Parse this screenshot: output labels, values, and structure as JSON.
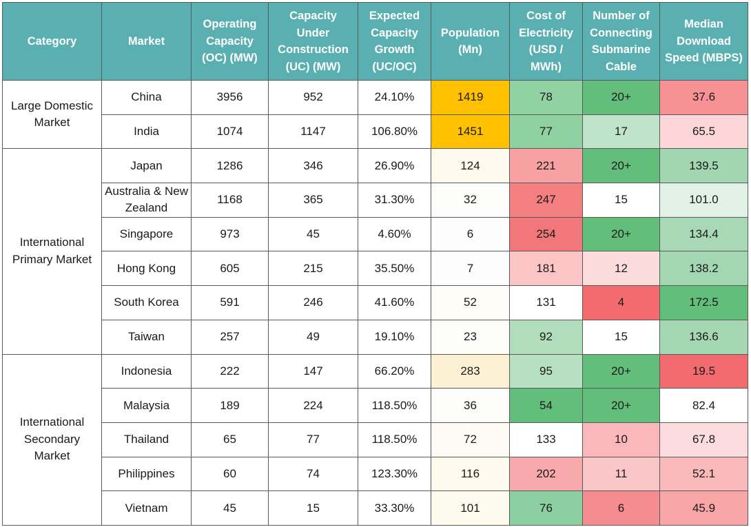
{
  "headers": [
    "Category",
    "Market",
    "Operating Capacity (OC) (MW)",
    "Capacity Under Construction (UC) (MW)",
    "Expected Capacity Growth (UC/OC)",
    "Population (Mn)",
    "Cost of Electricity (USD / MWh)",
    "Number of Connecting Submarine Cable",
    "Median Download Speed (MBPS)"
  ],
  "groups": [
    {
      "category": "Large Domestic Market",
      "rows": [
        {
          "market": "China",
          "oc": "3956",
          "uc": "952",
          "growth": "24.10%",
          "population": "1419",
          "cost": "78",
          "cables": "20+",
          "speed": "37.6"
        },
        {
          "market": "India",
          "oc": "1074",
          "uc": "1147",
          "growth": "106.80%",
          "population": "1451",
          "cost": "77",
          "cables": "17",
          "speed": "65.5"
        }
      ]
    },
    {
      "category": "International Primary Market",
      "rows": [
        {
          "market": "Japan",
          "oc": "1286",
          "uc": "346",
          "growth": "26.90%",
          "population": "124",
          "cost": "221",
          "cables": "20+",
          "speed": "139.5"
        },
        {
          "market": "Australia & New Zealand",
          "oc": "1168",
          "uc": "365",
          "growth": "31.30%",
          "population": "32",
          "cost": "247",
          "cables": "15",
          "speed": "101.0"
        },
        {
          "market": "Singapore",
          "oc": "973",
          "uc": "45",
          "growth": "4.60%",
          "population": "6",
          "cost": "254",
          "cables": "20+",
          "speed": "134.4"
        },
        {
          "market": "Hong Kong",
          "oc": "605",
          "uc": "215",
          "growth": "35.50%",
          "population": "7",
          "cost": "181",
          "cables": "12",
          "speed": "138.2"
        },
        {
          "market": "South Korea",
          "oc": "591",
          "uc": "246",
          "growth": "41.60%",
          "population": "52",
          "cost": "131",
          "cables": "4",
          "speed": "172.5"
        },
        {
          "market": "Taiwan",
          "oc": "257",
          "uc": "49",
          "growth": "19.10%",
          "population": "23",
          "cost": "92",
          "cables": "15",
          "speed": "136.6"
        }
      ]
    },
    {
      "category": "International Secondary Market",
      "rows": [
        {
          "market": "Indonesia",
          "oc": "222",
          "uc": "147",
          "growth": "66.20%",
          "population": "283",
          "cost": "95",
          "cables": "20+",
          "speed": "19.5"
        },
        {
          "market": "Malaysia",
          "oc": "189",
          "uc": "224",
          "growth": "118.50%",
          "population": "36",
          "cost": "54",
          "cables": "20+",
          "speed": "82.4"
        },
        {
          "market": "Thailand",
          "oc": "65",
          "uc": "77",
          "growth": "118.50%",
          "population": "72",
          "cost": "133",
          "cables": "10",
          "speed": "67.8"
        },
        {
          "market": "Philippines",
          "oc": "60",
          "uc": "74",
          "growth": "123.30%",
          "population": "116",
          "cost": "202",
          "cables": "11",
          "speed": "52.1"
        },
        {
          "market": "Vietnam",
          "oc": "45",
          "uc": "15",
          "growth": "33.30%",
          "population": "101",
          "cost": "76",
          "cables": "6",
          "speed": "45.9"
        }
      ]
    }
  ],
  "colors": {
    "header_bg": "#5aafb0",
    "header_text": "#ffffff",
    "border": "#595959",
    "population": {
      "China": "#ffc000",
      "India": "#ffc000",
      "Japan": "#fdf9ec",
      "Australia & New Zealand": "#fcfcfb",
      "Singapore": "#fdfdfd",
      "Hong Kong": "#fdfdfd",
      "South Korea": "#fdfcf7",
      "Taiwan": "#fcfcfb",
      "Indonesia": "#fcf2d3",
      "Malaysia": "#fcfcfb",
      "Thailand": "#fdfbf3",
      "Philippines": "#fdf9ec",
      "Vietnam": "#fdfaee"
    },
    "cost": {
      "China": "#90d2a2",
      "India": "#8fd1a0",
      "Japan": "#f7a1a3",
      "Australia & New Zealand": "#f47f80",
      "Singapore": "#f1777a",
      "Hong Kong": "#fbc5c6",
      "South Korea": "#ffffff",
      "Taiwan": "#b1ddbd",
      "Indonesia": "#b7e0c2",
      "Malaysia": "#63bd7b",
      "Thailand": "#ffffff",
      "Philippines": "#f8a9ab",
      "Vietnam": "#8ccfa0"
    },
    "cables": {
      "China": "#63bd7b",
      "India": "#c0e4ca",
      "Japan": "#63bd7b",
      "Australia & New Zealand": "#ffffff",
      "Singapore": "#63bd7b",
      "Hong Kong": "#fcdbdc",
      "South Korea": "#f36b6e",
      "Taiwan": "#ffffff",
      "Indonesia": "#63bd7b",
      "Malaysia": "#63bd7b",
      "Thailand": "#fbb8ba",
      "Philippines": "#fbc6c8",
      "Vietnam": "#f58c8f"
    },
    "speed": {
      "China": "#f79294",
      "India": "#fcd6d8",
      "Japan": "#a2d6b0",
      "Australia & New Zealand": "#e2f2e6",
      "Singapore": "#a8d8b6",
      "Hong Kong": "#a3d6b2",
      "South Korea": "#63bd7b",
      "Taiwan": "#a6d7b3",
      "Indonesia": "#f36b6e",
      "Malaysia": "#ffffff",
      "Thailand": "#fcdcde",
      "Philippines": "#fab9bb",
      "Vietnam": "#f9a6a8"
    }
  }
}
